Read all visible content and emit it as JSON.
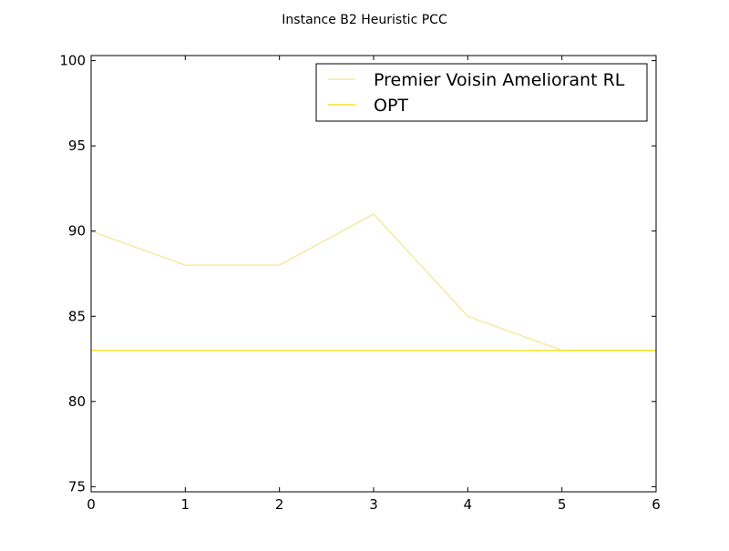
{
  "chart_data": {
    "type": "line",
    "title": "Instance B2 Heuristic PCC",
    "xlabel": "",
    "ylabel": "",
    "xlim": [
      0,
      6
    ],
    "ylim": [
      74.7,
      100.3
    ],
    "x_ticks": [
      0,
      1,
      2,
      3,
      4,
      5,
      6
    ],
    "y_ticks": [
      75,
      80,
      85,
      90,
      95,
      100
    ],
    "grid": false,
    "legend_position": "top-right",
    "series": [
      {
        "name": "Premier Voisin Ameliorant RL",
        "color": "#f0e68c",
        "x": [
          0,
          1,
          2,
          3,
          4,
          5,
          6
        ],
        "values": [
          90,
          88,
          88,
          91,
          85,
          83,
          83
        ]
      },
      {
        "name": "OPT",
        "color": "#ffd700",
        "x": [
          0,
          6
        ],
        "values": [
          83,
          83
        ]
      }
    ]
  }
}
